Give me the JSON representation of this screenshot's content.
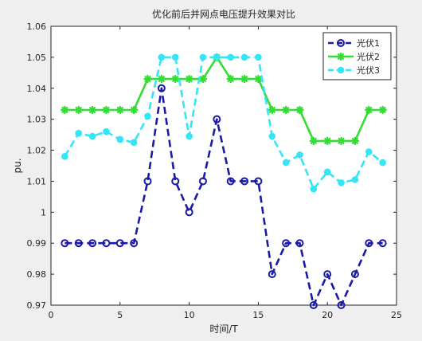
{
  "chart_data": {
    "type": "line",
    "title": "优化前后并网点电压提升效果对比",
    "xlabel": "时间/T",
    "ylabel": "pu.",
    "xlim": [
      0,
      25
    ],
    "ylim": [
      0.97,
      1.06
    ],
    "xticks": [
      "0",
      "5",
      "10",
      "15",
      "20",
      "25"
    ],
    "yticks": [
      "0.97",
      "0.98",
      "0.99",
      "1",
      "1.01",
      "1.02",
      "1.03",
      "1.04",
      "1.05",
      "1.06"
    ],
    "grid": false,
    "legend_position": "top-right",
    "x": [
      1,
      2,
      3,
      4,
      5,
      6,
      7,
      8,
      9,
      10,
      11,
      12,
      13,
      14,
      15,
      16,
      17,
      18,
      19,
      20,
      21,
      22,
      23,
      24
    ],
    "series": [
      {
        "name": "光伏1",
        "color": "#1a1aa6",
        "line": "dashed",
        "marker": "circle-open",
        "values": [
          0.99,
          0.99,
          0.99,
          0.99,
          0.99,
          0.99,
          1.01,
          1.04,
          1.01,
          1.0,
          1.01,
          1.03,
          1.01,
          1.01,
          1.01,
          0.98,
          0.99,
          0.99,
          0.97,
          0.98,
          0.97,
          0.98,
          0.99,
          0.99
        ]
      },
      {
        "name": "光伏2",
        "color": "#33dd33",
        "line": "solid",
        "marker": "star",
        "values": [
          1.033,
          1.033,
          1.033,
          1.033,
          1.033,
          1.033,
          1.043,
          1.043,
          1.043,
          1.043,
          1.043,
          1.05,
          1.043,
          1.043,
          1.043,
          1.033,
          1.033,
          1.033,
          1.023,
          1.023,
          1.023,
          1.023,
          1.033,
          1.033
        ]
      },
      {
        "name": "光伏3",
        "color": "#33e5f5",
        "line": "dashed",
        "marker": "dot",
        "values": [
          1.018,
          1.0255,
          1.0245,
          1.026,
          1.0235,
          1.0225,
          1.031,
          1.05,
          1.05,
          1.0245,
          1.05,
          1.05,
          1.05,
          1.05,
          1.05,
          1.0245,
          1.016,
          1.0185,
          1.0075,
          1.013,
          1.0095,
          1.0105,
          1.0195,
          1.016
        ]
      }
    ]
  }
}
